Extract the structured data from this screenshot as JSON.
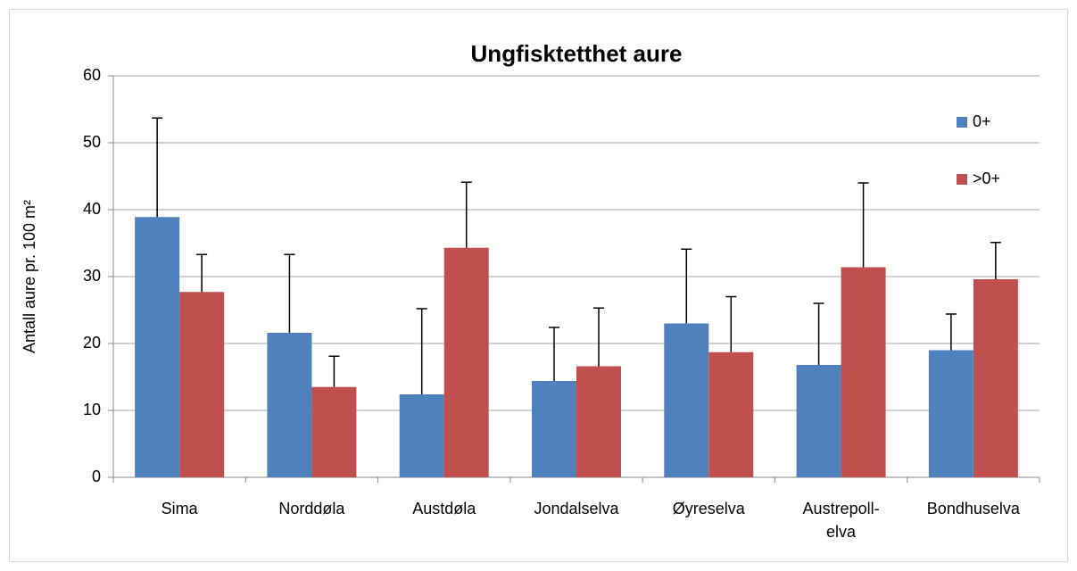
{
  "chart_data": {
    "type": "bar",
    "title": "Ungfisktetthet aure",
    "y_label": "Antall aure pr. 100 m²",
    "categories": [
      "Sima",
      "Norddøla",
      "Austdøla",
      "Jondalselva",
      "Øyreselva",
      "Austrepoll-elva",
      "Bondhuselva"
    ],
    "series": [
      {
        "name": "0+",
        "color": "#4f81bd",
        "values": [
          38.9,
          21.6,
          12.4,
          14.4,
          23.0,
          16.8,
          19.0
        ],
        "errors": [
          14.8,
          11.7,
          12.8,
          8.0,
          11.1,
          9.2,
          5.4
        ]
      },
      {
        "name": ">0+",
        "color": "#c0504d",
        "values": [
          27.7,
          13.5,
          34.3,
          16.6,
          18.7,
          31.4,
          29.6
        ],
        "errors": [
          5.6,
          4.6,
          9.8,
          8.7,
          8.3,
          12.6,
          5.5
        ]
      }
    ],
    "ylim": [
      0,
      60
    ],
    "yticks": [
      0,
      10,
      20,
      30,
      40,
      50,
      60
    ],
    "grid": true,
    "legend": "right"
  }
}
